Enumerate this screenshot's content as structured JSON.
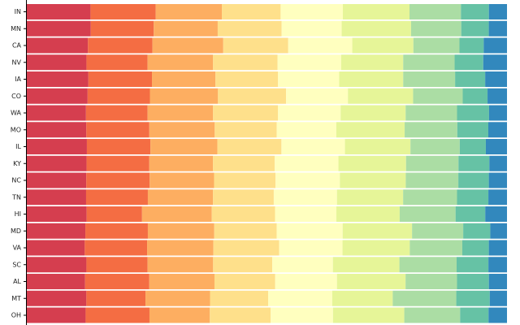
{
  "chart_data": {
    "type": "bar",
    "orientation": "horizontal",
    "stacked": true,
    "normalized": true,
    "title": "",
    "xlabel": "",
    "ylabel": "",
    "xlim": [
      0,
      1
    ],
    "grid": false,
    "legend": "none",
    "categories": [
      "IN",
      "MN",
      "CA",
      "NV",
      "IA",
      "CO",
      "WA",
      "MO",
      "IL",
      "KY",
      "NC",
      "TN",
      "HI",
      "MD",
      "VA",
      "SC",
      "AL",
      "MT",
      "OH"
    ],
    "colors": [
      "#d53e4f",
      "#f46d43",
      "#fdae61",
      "#fee08b",
      "#ffffbf",
      "#e6f598",
      "#abdda4",
      "#66c2a5",
      "#3288bd"
    ],
    "segments": [
      [
        0.13,
        0.133,
        0.135,
        0.12,
        0.127,
        0.136,
        0.105,
        0.057,
        0.037
      ],
      [
        0.13,
        0.128,
        0.13,
        0.13,
        0.122,
        0.141,
        0.102,
        0.056,
        0.037
      ],
      [
        0.126,
        0.133,
        0.146,
        0.134,
        0.132,
        0.126,
        0.095,
        0.05,
        0.048
      ],
      [
        0.123,
        0.126,
        0.135,
        0.133,
        0.131,
        0.128,
        0.106,
        0.059,
        0.049
      ],
      [
        0.127,
        0.131,
        0.131,
        0.129,
        0.126,
        0.132,
        0.107,
        0.062,
        0.045
      ],
      [
        0.125,
        0.128,
        0.14,
        0.14,
        0.127,
        0.134,
        0.102,
        0.051,
        0.04
      ],
      [
        0.122,
        0.127,
        0.135,
        0.134,
        0.129,
        0.134,
        0.106,
        0.066,
        0.037
      ],
      [
        0.121,
        0.128,
        0.133,
        0.126,
        0.121,
        0.139,
        0.107,
        0.063,
        0.038
      ],
      [
        0.122,
        0.129,
        0.136,
        0.13,
        0.129,
        0.133,
        0.1,
        0.053,
        0.043
      ],
      [
        0.122,
        0.128,
        0.13,
        0.126,
        0.13,
        0.138,
        0.107,
        0.063,
        0.036
      ],
      [
        0.121,
        0.129,
        0.131,
        0.125,
        0.131,
        0.134,
        0.107,
        0.062,
        0.037
      ],
      [
        0.121,
        0.126,
        0.133,
        0.124,
        0.129,
        0.135,
        0.11,
        0.064,
        0.038
      ],
      [
        0.121,
        0.112,
        0.141,
        0.128,
        0.124,
        0.128,
        0.113,
        0.06,
        0.044
      ],
      [
        0.119,
        0.127,
        0.135,
        0.127,
        0.134,
        0.141,
        0.104,
        0.055,
        0.034
      ],
      [
        0.118,
        0.127,
        0.135,
        0.134,
        0.129,
        0.137,
        0.107,
        0.054,
        0.037
      ],
      [
        0.122,
        0.125,
        0.134,
        0.121,
        0.124,
        0.136,
        0.117,
        0.065,
        0.038
      ],
      [
        0.119,
        0.131,
        0.133,
        0.124,
        0.126,
        0.14,
        0.105,
        0.065,
        0.037
      ],
      [
        0.121,
        0.12,
        0.131,
        0.118,
        0.13,
        0.123,
        0.129,
        0.068,
        0.035
      ],
      [
        0.118,
        0.128,
        0.121,
        0.122,
        0.125,
        0.143,
        0.112,
        0.057,
        0.037
      ]
    ]
  }
}
